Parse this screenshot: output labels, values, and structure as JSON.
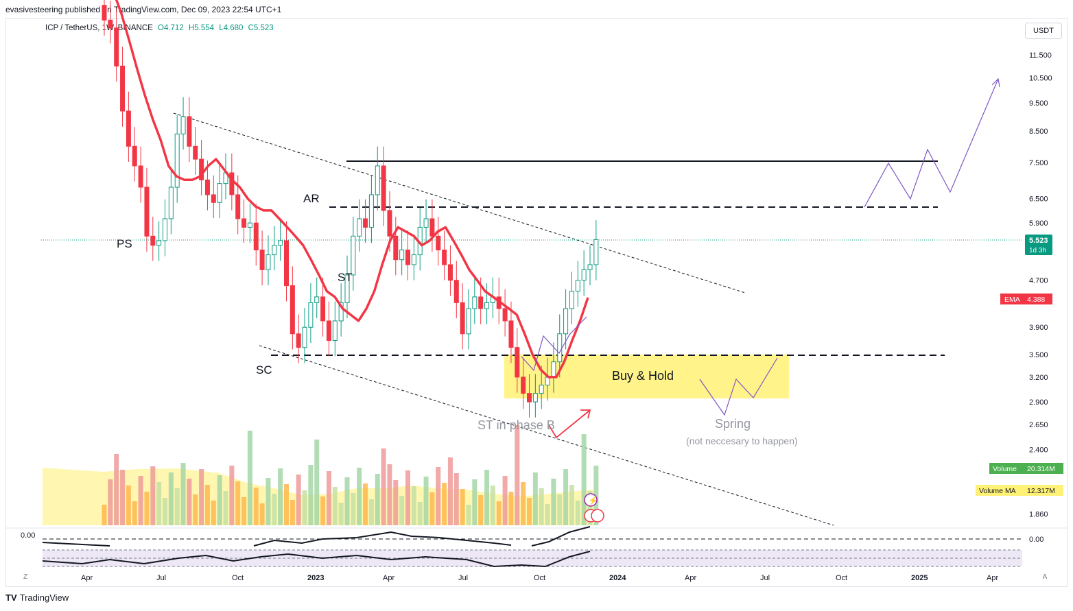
{
  "header": {
    "published": "evasivesteering published on TradingView.com, Dec 09, 2023 22:54 UTC+1",
    "symbol": "ICP / TetherUS, 1W, BINANCE",
    "open": "O4.712",
    "high": "H5.554",
    "low": "L4.680",
    "close": "C5.523"
  },
  "currency_button": "USDT",
  "footer": {
    "brand": "TradingView",
    "left_button": "Z",
    "right_button": "A"
  },
  "colors": {
    "up": "#089981",
    "down": "#f23645",
    "ema": "#f23645",
    "buy_zone": "#fff176",
    "annotation": "#7e57c2",
    "volume_ma": "#fff176"
  },
  "chart_data": {
    "type": "candlestick",
    "title": "ICP / TetherUS, 1W, BINANCE",
    "y_axis": {
      "scale": "log",
      "ticks": [
        "11.500",
        "10.500",
        "9.500",
        "8.500",
        "7.500",
        "6.500",
        "5.900",
        "4.700",
        "3.900",
        "3.500",
        "3.200",
        "2.900",
        "2.650",
        "2.400",
        "1.860"
      ]
    },
    "x_axis": {
      "ticks": [
        "Apr",
        "Jul",
        "Oct",
        "2023",
        "Apr",
        "Jul",
        "Oct",
        "2024",
        "Apr",
        "Jul",
        "Oct",
        "2025",
        "Apr"
      ]
    },
    "price_label": {
      "value": "5.523",
      "countdown": "1d 3h"
    },
    "ema_label": {
      "name": "EMA",
      "value": "4.388"
    },
    "volume_label": {
      "name": "Volume",
      "value": "20.314M"
    },
    "volume_ma_label": {
      "name": "Volume MA",
      "value": "12.317M"
    },
    "oscillator": {
      "left_value": "0.00",
      "right_value": "0.00"
    },
    "candles_close": [
      13.2,
      12.8,
      11.0,
      9.2,
      8.0,
      7.4,
      6.8,
      5.6,
      5.4,
      5.5,
      6.0,
      6.8,
      8.4,
      9.0,
      8.0,
      7.6,
      7.0,
      6.6,
      6.4,
      6.9,
      7.2,
      6.6,
      6.0,
      5.8,
      5.9,
      5.3,
      4.9,
      5.2,
      5.4,
      5.5,
      4.6,
      3.8,
      3.6,
      3.9,
      4.3,
      4.4,
      4.0,
      3.7,
      4.0,
      4.3,
      4.8,
      5.6,
      6.0,
      5.8,
      6.6,
      7.4,
      6.2,
      5.6,
      5.1,
      5.3,
      5.0,
      5.2,
      5.8,
      6.0,
      5.6,
      5.3,
      5.0,
      4.7,
      4.3,
      3.8,
      4.2,
      4.4,
      4.2,
      4.3,
      4.4,
      4.2,
      4.0,
      3.6,
      3.2,
      3.0,
      2.9,
      3.0,
      3.1,
      3.2,
      3.4,
      3.8,
      4.2,
      4.5,
      4.7,
      4.9,
      5.0,
      5.523
    ],
    "ema_series": [
      14.8,
      13.6,
      12.2,
      10.9,
      9.8,
      8.9,
      8.2,
      7.4,
      7.1,
      7.0,
      7.0,
      7.1,
      7.4,
      7.6,
      7.3,
      7.0,
      6.8,
      6.5,
      6.3,
      6.2,
      6.2,
      6.0,
      5.8,
      5.6,
      5.4,
      5.1,
      4.8,
      4.5,
      4.4,
      4.2,
      4.1,
      4.0,
      4.2,
      4.5,
      5.0,
      5.5,
      5.8,
      5.7,
      5.6,
      5.4,
      5.5,
      5.7,
      5.8,
      5.5,
      5.2,
      4.9,
      4.7,
      4.5,
      4.4,
      4.3,
      4.2,
      4.1,
      3.8,
      3.5,
      3.3,
      3.2,
      3.2,
      3.4,
      3.7,
      4.0,
      4.388
    ],
    "levels": [
      {
        "price": 7.5,
        "style": "solid"
      },
      {
        "price": 6.3,
        "style": "dashed"
      },
      {
        "price": 3.5,
        "style": "dashed"
      }
    ],
    "buy_zone": {
      "top": 3.5,
      "bottom": 2.95
    },
    "annotations": [
      "PS",
      "SC",
      "AR",
      "ST",
      "ST in phase B",
      "Buy & Hold",
      "Spring",
      "(not neccesary to happen)"
    ]
  }
}
